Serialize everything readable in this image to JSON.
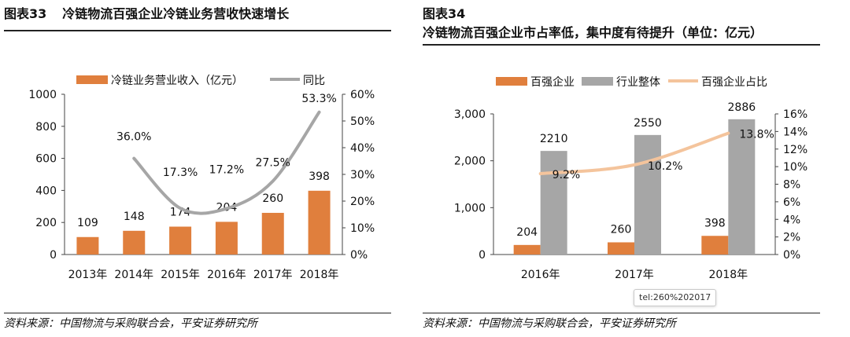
{
  "left": {
    "fig_num": "图表33",
    "fig_title": "冷链物流百强企业冷链业务营收快速增长",
    "source": "资料来源：中国物流与采购联合会，平安证券研究所"
  },
  "right": {
    "fig_num": "图表34",
    "fig_title": "冷链物流百强企业市占率低，集中度有待提升（单位：亿元）",
    "source": "资料来源：中国物流与采购联合会，平安证券研究所"
  },
  "tooltip": "tel:260%202017",
  "colors": {
    "orange": "#E07F3D",
    "gray": "#A6A6A6",
    "gray_line": "#A6A6A6",
    "peach": "#F4C49C"
  },
  "chart_data": [
    {
      "type": "bar",
      "categories": [
        "2013年",
        "2014年",
        "2015年",
        "2016年",
        "2017年",
        "2018年"
      ],
      "series": [
        {
          "name": "冷链业务营业收入（亿元）",
          "kind": "bar",
          "axis": "left",
          "color": "#E07F3D",
          "values": [
            109,
            148,
            174,
            204,
            260,
            398
          ],
          "labels": [
            "109",
            "148",
            "174",
            "204",
            "260",
            "398"
          ]
        },
        {
          "name": "同比",
          "kind": "line",
          "axis": "right",
          "color": "#A6A6A6",
          "values": [
            null,
            36.0,
            17.3,
            17.2,
            27.5,
            53.3
          ],
          "labels": [
            "",
            "36.0%",
            "17.3%",
            "17.2%",
            "27.5%",
            "53.3%"
          ]
        }
      ],
      "y_left": {
        "min": 0,
        "max": 1000,
        "ticks": [
          "0",
          "200",
          "400",
          "600",
          "800",
          "1000"
        ]
      },
      "y_right": {
        "min": 0,
        "max": 60,
        "ticks": [
          "0%",
          "10%",
          "20%",
          "30%",
          "40%",
          "50%",
          "60%"
        ]
      },
      "legend": "top",
      "grid": false
    },
    {
      "type": "bar",
      "categories": [
        "2016年",
        "2017年",
        "2018年"
      ],
      "series": [
        {
          "name": "百强企业",
          "kind": "bar",
          "axis": "left",
          "color": "#E07F3D",
          "values": [
            204,
            260,
            398
          ],
          "labels": [
            "204",
            "260",
            "398"
          ]
        },
        {
          "name": "行业整体",
          "kind": "bar",
          "axis": "left",
          "color": "#A6A6A6",
          "values": [
            2210,
            2550,
            2886
          ],
          "labels": [
            "2210",
            "2550",
            "2886"
          ]
        },
        {
          "name": "百强企业占比",
          "kind": "line",
          "axis": "right",
          "color": "#F4C49C",
          "values": [
            9.2,
            10.2,
            13.8
          ],
          "labels": [
            "9.2%",
            "10.2%",
            "13.8%"
          ]
        }
      ],
      "y_left": {
        "min": 0,
        "max": 3000,
        "ticks": [
          "0",
          "1,000",
          "2,000",
          "3,000"
        ]
      },
      "y_right": {
        "min": 0,
        "max": 16,
        "ticks": [
          "0%",
          "2%",
          "4%",
          "6%",
          "8%",
          "10%",
          "12%",
          "14%",
          "16%"
        ]
      },
      "legend": "top",
      "grid": false
    }
  ]
}
